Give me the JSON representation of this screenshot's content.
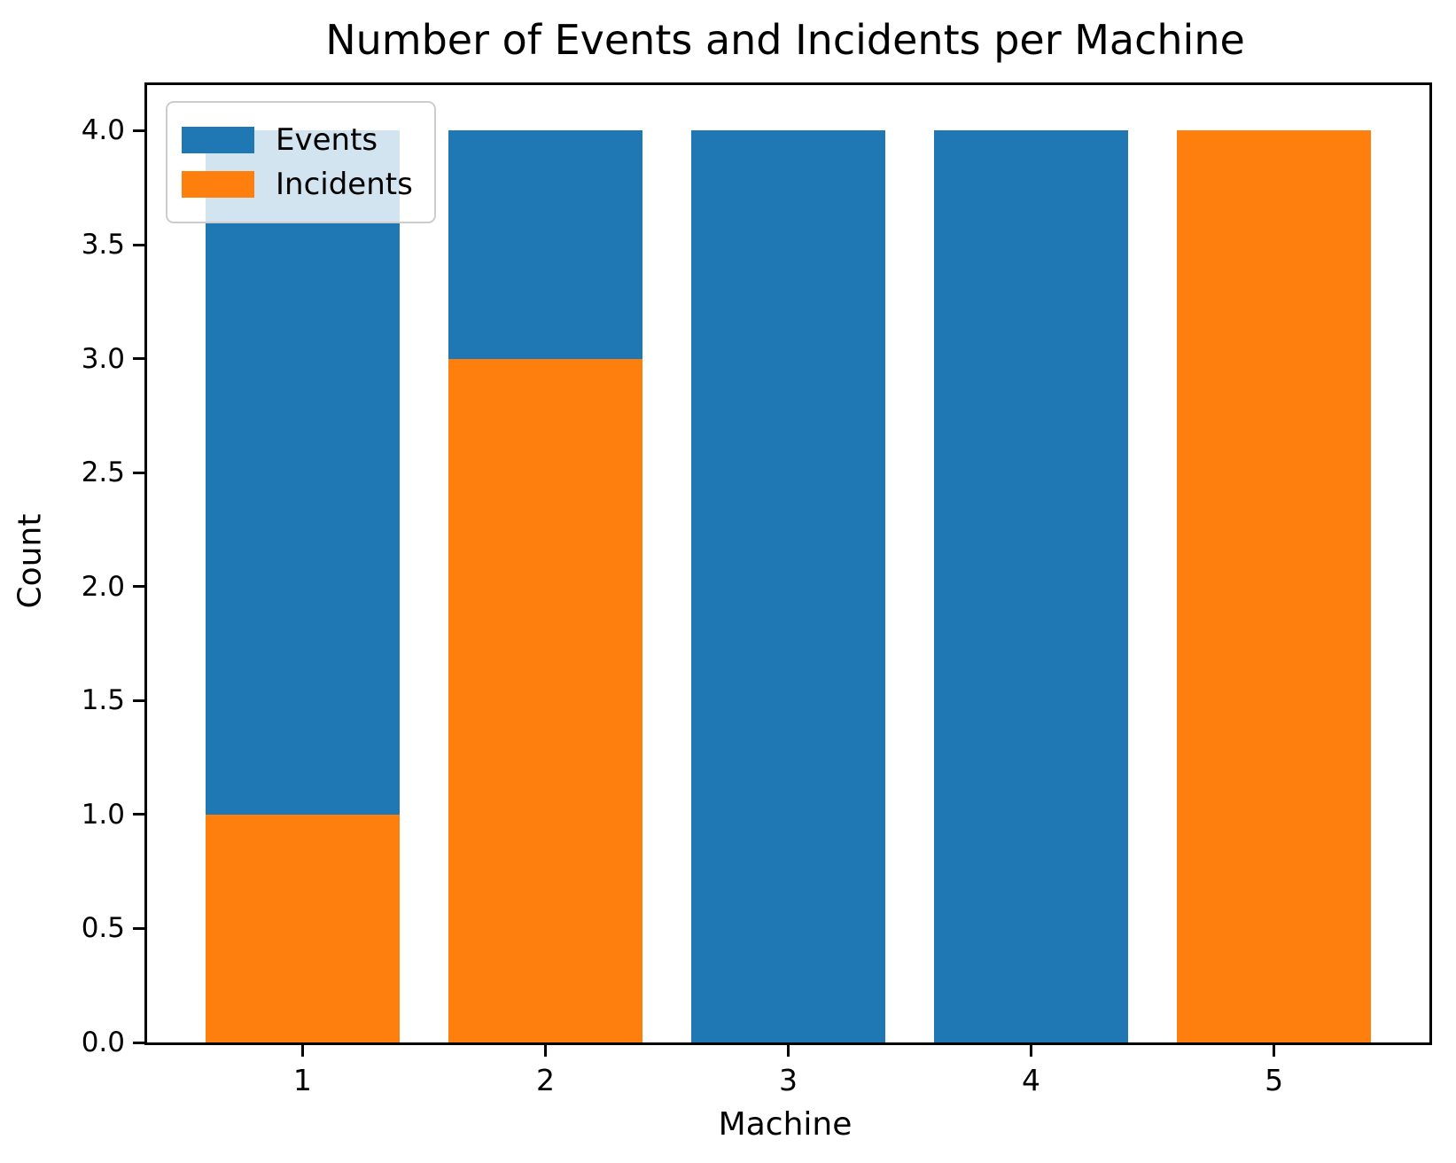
{
  "chart_data": {
    "type": "bar",
    "mode": "overlay",
    "title": "Number of Events and Incidents per Machine",
    "xlabel": "Machine",
    "ylabel": "Count",
    "categories": [
      1,
      2,
      3,
      4,
      5
    ],
    "series": [
      {
        "name": "Events",
        "color": "#1f77b4",
        "values": [
          4,
          4,
          4,
          4,
          0
        ]
      },
      {
        "name": "Incidents",
        "color": "#ff7f0e",
        "values": [
          1,
          3,
          0,
          0,
          4
        ]
      }
    ],
    "bar_width": 0.8,
    "xlim": [
      0.36,
      5.64
    ],
    "ylim": [
      0,
      4.2
    ],
    "yticks": [
      {
        "value": 0.0,
        "label": "0.0"
      },
      {
        "value": 0.5,
        "label": "0.5"
      },
      {
        "value": 1.0,
        "label": "1.0"
      },
      {
        "value": 1.5,
        "label": "1.5"
      },
      {
        "value": 2.0,
        "label": "2.0"
      },
      {
        "value": 2.5,
        "label": "2.5"
      },
      {
        "value": 3.0,
        "label": "3.0"
      },
      {
        "value": 3.5,
        "label": "3.5"
      },
      {
        "value": 4.0,
        "label": "4.0"
      }
    ],
    "xticks": [
      {
        "value": 1,
        "label": "1"
      },
      {
        "value": 2,
        "label": "2"
      },
      {
        "value": 3,
        "label": "3"
      },
      {
        "value": 4,
        "label": "4"
      },
      {
        "value": 5,
        "label": "5"
      }
    ],
    "legend": {
      "position": "upper-left",
      "entries": [
        "Events",
        "Incidents"
      ]
    },
    "grid": false
  }
}
